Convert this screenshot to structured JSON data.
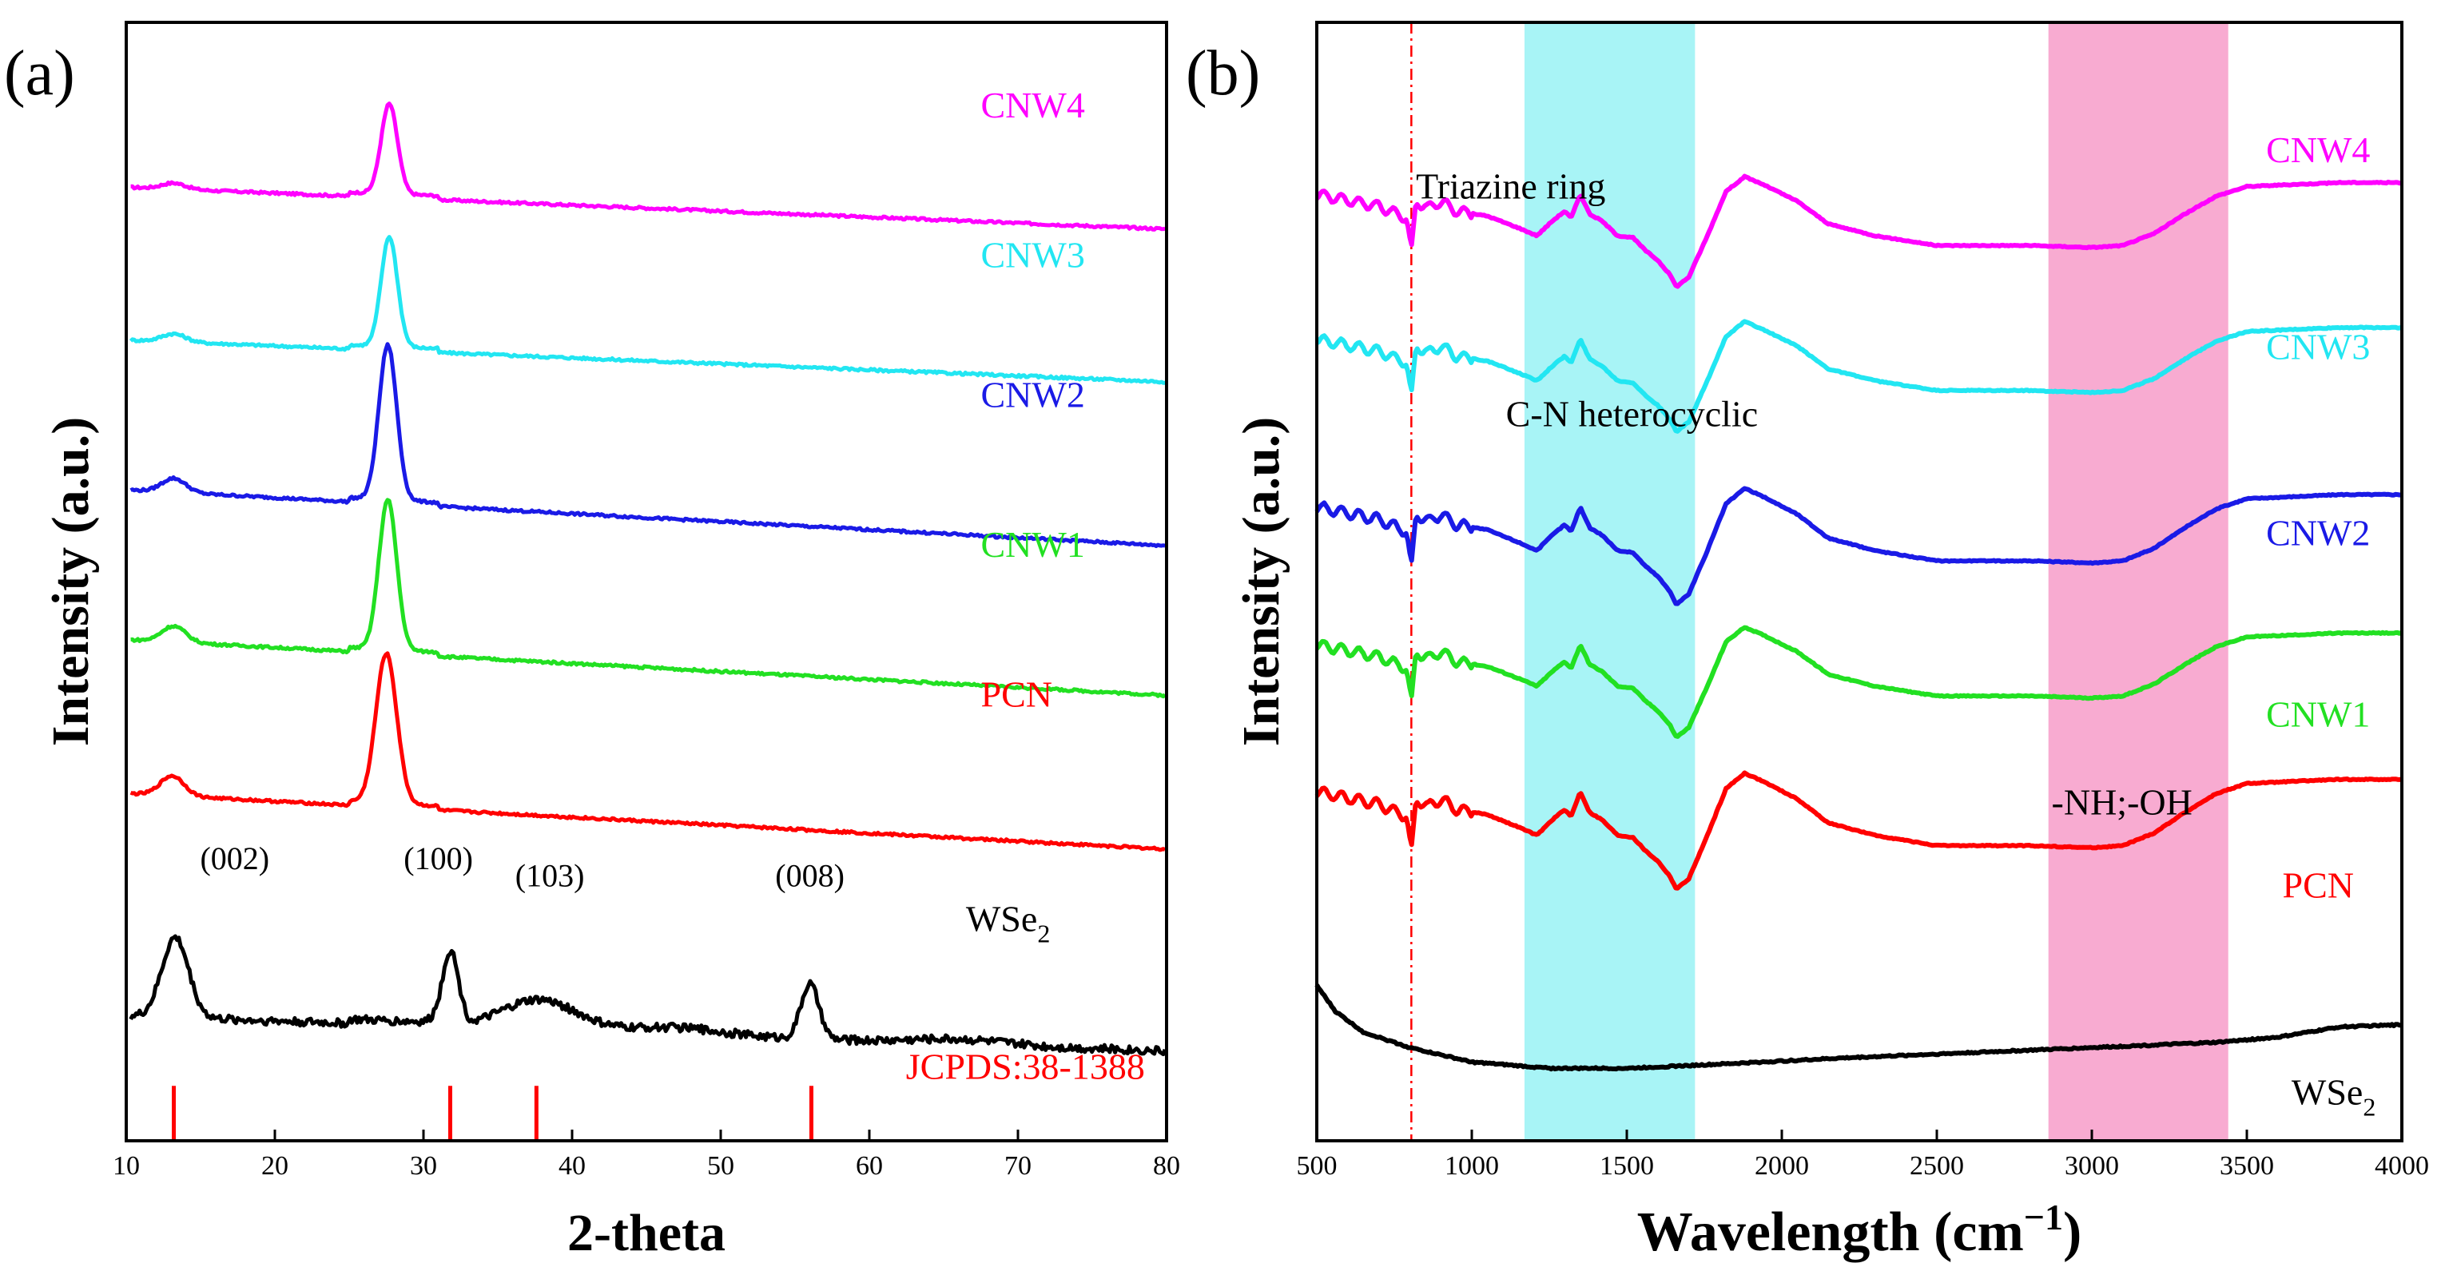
{
  "chart_data": [
    {
      "panel_label": "(a)",
      "type": "line",
      "title": "",
      "xlabel": "2-theta",
      "ylabel": "Intensity (a.u.)",
      "xlim": [
        10,
        80
      ],
      "xticks": [
        10,
        20,
        30,
        40,
        50,
        60,
        70,
        80
      ],
      "yticks_shown": false,
      "series": [
        {
          "name": "CNW4",
          "color": "#ff00ff",
          "baseline": 9.55,
          "noise": 0.012,
          "peaks": [
            [
              27.7,
              0.9,
              0.55
            ],
            [
              13.2,
              0.06,
              0.8
            ]
          ],
          "slope": -0.0006
        },
        {
          "name": "CNW3",
          "color": "#22e6f2",
          "baseline": 8.02,
          "noise": 0.012,
          "peaks": [
            [
              27.7,
              1.1,
              0.55
            ],
            [
              13.2,
              0.08,
              0.8
            ]
          ],
          "slope": -0.0006
        },
        {
          "name": "CNW2",
          "color": "#1a1ae6",
          "baseline": 6.52,
          "noise": 0.012,
          "peaks": [
            [
              27.6,
              1.55,
              0.6
            ],
            [
              13.2,
              0.14,
              0.8
            ]
          ],
          "slope": -0.0008
        },
        {
          "name": "CNW1",
          "color": "#22e022",
          "baseline": 5.02,
          "noise": 0.012,
          "peaks": [
            [
              27.6,
              1.5,
              0.6
            ],
            [
              13.2,
              0.16,
              0.8
            ]
          ],
          "slope": -0.0008
        },
        {
          "name": "PCN",
          "color": "#ff0000",
          "baseline": 3.48,
          "noise": 0.012,
          "peaks": [
            [
              27.5,
              1.5,
              0.7
            ],
            [
              13.1,
              0.2,
              0.8
            ]
          ],
          "slope": -0.0008
        },
        {
          "name": "WSe₂",
          "color": "#000000",
          "baseline": 1.25,
          "noise": 0.04,
          "peaks": [
            [
              13.3,
              0.8,
              0.9
            ],
            [
              31.8,
              0.75,
              0.55
            ],
            [
              37.8,
              0.3,
              2.5
            ],
            [
              56.0,
              0.55,
              0.6
            ],
            [
              47.0,
              0.07,
              3.0
            ],
            [
              66.0,
              0.05,
              3.0
            ]
          ],
          "slope": -0.0005
        }
      ],
      "series_labels": [
        {
          "text": "CNW4",
          "color": "#ff00ff",
          "x": 67.5,
          "y": 10.25
        },
        {
          "text": "CNW3",
          "color": "#22e6f2",
          "x": 67.5,
          "y": 8.75
        },
        {
          "text": "CNW2",
          "color": "#1a1ae6",
          "x": 67.5,
          "y": 7.35
        },
        {
          "text": "CNW1",
          "color": "#22e022",
          "x": 67.5,
          "y": 5.85
        },
        {
          "text": "PCN",
          "color": "#ff0000",
          "x": 67.5,
          "y": 4.35
        }
      ],
      "wse2_label": {
        "prefix": "WSe",
        "sub": "2",
        "color": "#000000",
        "x": 66.5,
        "y": 2.1
      },
      "peak_annotations": [
        {
          "text": "(002)",
          "x": 17.3,
          "y": 2.72
        },
        {
          "text": "(100)",
          "x": 31.0,
          "y": 2.72
        },
        {
          "text": "(103)",
          "x": 38.5,
          "y": 2.55
        },
        {
          "text": "(008)",
          "x": 56.0,
          "y": 2.55
        }
      ],
      "reference": {
        "text": "JCPDS:38-1388",
        "color": "#ff0000",
        "positions": [
          13.2,
          31.8,
          37.6,
          56.1
        ],
        "height": 0.55,
        "label_x": 70.5,
        "label_y": 0.62
      }
    },
    {
      "panel_label": "(b)",
      "type": "line",
      "title": "",
      "xlabel_main": "Wavelength (cm",
      "xlabel_sup": "−1",
      "xlabel_close": ")",
      "ylabel": "Intensity (a.u.)",
      "xlim": [
        500,
        4000
      ],
      "xticks": [
        500,
        1000,
        1500,
        2000,
        2500,
        3000,
        3500,
        4000
      ],
      "yticks_shown": false,
      "bands": [
        {
          "name": "C-N heterocyclic band",
          "from": 1170,
          "to": 1720,
          "color": "#9ff3f5"
        },
        {
          "name": "-NH;-OH band",
          "from": 2860,
          "to": 3440,
          "color": "#f7a2cc"
        }
      ],
      "reference_line": {
        "x": 805,
        "color": "#ff0000",
        "style": "dash-dot"
      },
      "band_annotations": [
        {
          "text": "Triazine ring",
          "x": 820,
          "y": 9.1
        },
        {
          "text": "C-N heterocyclic",
          "x": 1110,
          "y": 6.9
        },
        {
          "text": "-NH;-OH",
          "x": 2870,
          "y": 3.15
        }
      ],
      "series": [
        {
          "name": "CNW4",
          "color": "#ff00ff",
          "offset": 8.55,
          "scale": 0.95
        },
        {
          "name": "CNW3",
          "color": "#22e6f2",
          "offset": 7.15,
          "scale": 0.95
        },
        {
          "name": "CNW2",
          "color": "#1a1ae6",
          "offset": 5.5,
          "scale": 1.0
        },
        {
          "name": "CNW1",
          "color": "#22e022",
          "offset": 4.2,
          "scale": 0.95
        },
        {
          "name": "PCN",
          "color": "#ff0000",
          "offset": 2.75,
          "scale": 1.0
        },
        {
          "name": "WSe₂",
          "color": "#000000",
          "wse2": true
        }
      ],
      "ftir_profile": [
        [
          500,
          0.62
        ],
        [
          700,
          0.5
        ],
        [
          790,
          0.38
        ],
        [
          805,
          0.02
        ],
        [
          820,
          0.55
        ],
        [
          860,
          0.48
        ],
        [
          900,
          0.55
        ],
        [
          950,
          0.45
        ],
        [
          1050,
          0.4
        ],
        [
          1150,
          0.28
        ],
        [
          1210,
          0.2
        ],
        [
          1260,
          0.35
        ],
        [
          1300,
          0.45
        ],
        [
          1320,
          0.38
        ],
        [
          1350,
          0.62
        ],
        [
          1380,
          0.42
        ],
        [
          1420,
          0.35
        ],
        [
          1470,
          0.2
        ],
        [
          1520,
          0.18
        ],
        [
          1560,
          0.05
        ],
        [
          1600,
          -0.05
        ],
        [
          1640,
          -0.2
        ],
        [
          1660,
          -0.32
        ],
        [
          1700,
          -0.22
        ],
        [
          1760,
          0.2
        ],
        [
          1820,
          0.65
        ],
        [
          1880,
          0.8
        ],
        [
          1940,
          0.72
        ],
        [
          2050,
          0.55
        ],
        [
          2150,
          0.32
        ],
        [
          2300,
          0.2
        ],
        [
          2500,
          0.1
        ],
        [
          2800,
          0.1
        ],
        [
          3000,
          0.08
        ],
        [
          3100,
          0.1
        ],
        [
          3200,
          0.22
        ],
        [
          3300,
          0.42
        ],
        [
          3400,
          0.6
        ],
        [
          3500,
          0.7
        ],
        [
          3800,
          0.74
        ],
        [
          4000,
          0.74
        ]
      ],
      "wse2_profile": [
        [
          500,
          1.5
        ],
        [
          560,
          1.25
        ],
        [
          650,
          1.05
        ],
        [
          800,
          0.9
        ],
        [
          1000,
          0.76
        ],
        [
          1250,
          0.7
        ],
        [
          1500,
          0.7
        ],
        [
          1800,
          0.74
        ],
        [
          2200,
          0.8
        ],
        [
          2600,
          0.85
        ],
        [
          3000,
          0.9
        ],
        [
          3400,
          0.95
        ],
        [
          3600,
          1.0
        ],
        [
          3800,
          1.1
        ],
        [
          4000,
          1.12
        ]
      ],
      "series_labels": [
        {
          "text": "CNW4",
          "color": "#ff00ff",
          "x": 3730,
          "y": 9.45
        },
        {
          "text": "CNW3",
          "color": "#22e6f2",
          "x": 3730,
          "y": 7.55
        },
        {
          "text": "CNW2",
          "color": "#1a1ae6",
          "x": 3730,
          "y": 5.75
        },
        {
          "text": "CNW1",
          "color": "#22e022",
          "x": 3730,
          "y": 4.0
        },
        {
          "text": "PCN",
          "color": "#ff0000",
          "x": 3730,
          "y": 2.35
        }
      ],
      "wse2_label": {
        "prefix": "WSe",
        "sub": "2",
        "color": "#000000",
        "x": 3780,
        "y": 0.35
      }
    }
  ]
}
